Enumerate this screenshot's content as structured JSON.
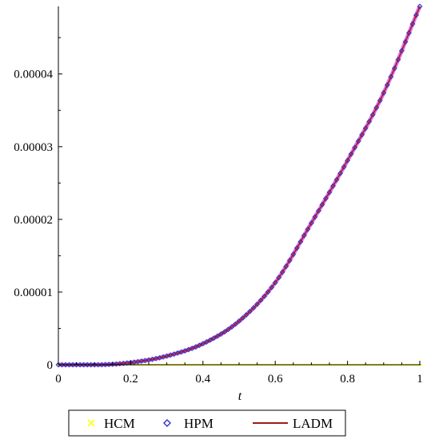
{
  "chart_data": {
    "type": "line",
    "title": "",
    "xlabel": "t",
    "ylabel": "",
    "xlim": [
      0,
      1
    ],
    "ylim": [
      0,
      4.93e-05
    ],
    "x_ticks": [
      0,
      0.2,
      0.4,
      0.6,
      0.8,
      1
    ],
    "x_tick_labels": [
      "0",
      "0.2",
      "0.4",
      "0.6",
      "0.8",
      "1"
    ],
    "y_ticks": [
      0,
      1e-05,
      2e-05,
      3e-05,
      4e-05
    ],
    "y_tick_labels": [
      "0",
      "0.00001",
      "0.00002",
      "0.00003",
      "0.00004"
    ],
    "grid": false,
    "legend_position": "bottom",
    "series": [
      {
        "name": "HCM",
        "style": "point",
        "marker": "cross",
        "color": "#ffff33",
        "x": [
          0,
          0.1,
          0.2,
          0.3,
          0.4,
          0.5,
          0.6,
          0.7,
          0.8,
          0.9,
          1.0
        ],
        "y": [
          0,
          0,
          0,
          0,
          0,
          0,
          0,
          0,
          0,
          0,
          0
        ]
      },
      {
        "name": "HPM",
        "style": "point",
        "marker": "diamond",
        "color": "#3333cc",
        "x": [
          0,
          0.1,
          0.2,
          0.3,
          0.4,
          0.5,
          0.6,
          0.7,
          0.8,
          0.9,
          1.0
        ],
        "y": [
          0,
          0,
          3e-07,
          1.2e-06,
          2.9e-06,
          6e-06,
          1.13e-05,
          1.95e-05,
          2.81e-05,
          3.74e-05,
          4.93e-05
        ]
      },
      {
        "name": "LADM",
        "style": "line",
        "color": "#a01818",
        "x": [
          0,
          0.1,
          0.2,
          0.3,
          0.4,
          0.5,
          0.6,
          0.7,
          0.8,
          0.9,
          1.0
        ],
        "y": [
          0,
          0,
          3e-07,
          1.2e-06,
          2.9e-06,
          6e-06,
          1.13e-05,
          1.95e-05,
          2.81e-05,
          3.74e-05,
          4.93e-05
        ]
      }
    ]
  },
  "legend": {
    "items": [
      {
        "label": "HCM",
        "icon": "cross-marker-icon",
        "color": "#ffff33"
      },
      {
        "label": "HPM",
        "icon": "diamond-marker-icon",
        "color": "#3333cc"
      },
      {
        "label": "LADM",
        "icon": "line-icon",
        "color": "#a01818"
      }
    ]
  },
  "colors": {
    "hpm_halo": "#e070e0",
    "axis": "#000000"
  }
}
